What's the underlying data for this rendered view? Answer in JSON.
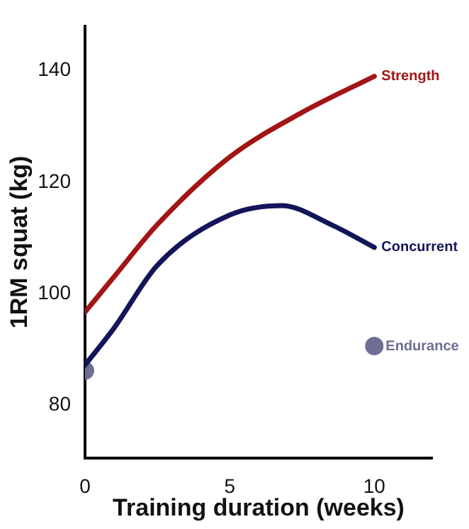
{
  "chart_data": {
    "type": "line",
    "xlabel": "Training duration (weeks)",
    "ylabel": "1RM squat (kg)",
    "xlim": [
      0,
      12
    ],
    "ylim": [
      70.5,
      148
    ],
    "xticks": [
      0,
      5,
      10
    ],
    "yticks": [
      80,
      100,
      120,
      140
    ],
    "grid": false,
    "legend": false,
    "series": [
      {
        "name": "Strength",
        "color": "#a31515",
        "marker": "none",
        "x": [
          0,
          1,
          2.5,
          5,
          7.5,
          10
        ],
        "values": [
          96.7,
          103,
          112.4,
          124.5,
          132.5,
          139
        ]
      },
      {
        "name": "Concurrent",
        "color": "#14145a",
        "marker": "none",
        "x": [
          0,
          1,
          2.5,
          5,
          6.8,
          8.5,
          10
        ],
        "values": [
          87.2,
          93.8,
          105.1,
          114.1,
          115.8,
          112.4,
          108.3
        ]
      },
      {
        "name": "Endurance",
        "type": "scatter",
        "color": "#6e6e96",
        "marker": "circle",
        "x": [
          0,
          10
        ],
        "values": [
          86.2,
          90.6
        ]
      }
    ]
  }
}
